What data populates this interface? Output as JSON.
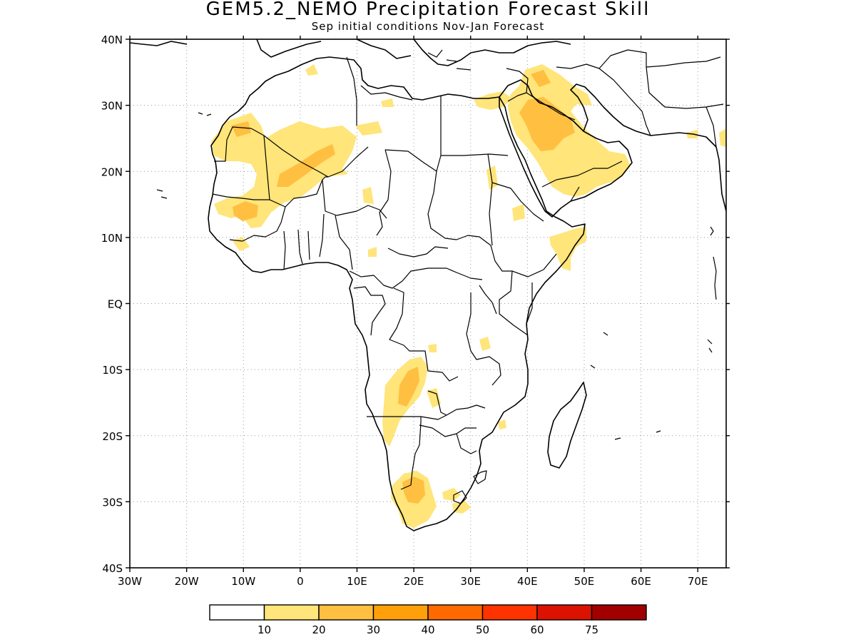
{
  "title": "GEM5.2_NEMO Precipitation Forecast Skill",
  "subtitle": "Sep initial conditions  Nov-Jan Forecast",
  "map": {
    "lon_range": [
      -30,
      75
    ],
    "lat_range": [
      -40,
      40
    ],
    "gridlines": true,
    "x_tick_labels": [
      "30W",
      "20W",
      "10W",
      "0",
      "10E",
      "20E",
      "30E",
      "40E",
      "50E",
      "60E",
      "70E"
    ],
    "y_tick_labels": [
      "40N",
      "30N",
      "20N",
      "10N",
      "EQ",
      "10S",
      "20S",
      "30S",
      "40S"
    ],
    "region": "Africa and Arabian Peninsula"
  },
  "colorbar": {
    "levels": [
      "10",
      "20",
      "30",
      "40",
      "50",
      "60",
      "75"
    ],
    "colors": [
      "#ffffff",
      "#ffe57a",
      "#ffbf40",
      "#ffa00a",
      "#ff6a00",
      "#ff3300",
      "#dc1200",
      "#a00000"
    ]
  },
  "skill_regions": [
    {
      "name": "western-sahara-mauritania",
      "level": "10-20"
    },
    {
      "name": "mauritania-core",
      "level": "20-30"
    },
    {
      "name": "mali-niger-band",
      "level": "10-20"
    },
    {
      "name": "mali-niger-core",
      "level": "20-30"
    },
    {
      "name": "guinea-highlands",
      "level": "20-30"
    },
    {
      "name": "arabian-peninsula",
      "level": "10-20"
    },
    {
      "name": "arabian-peninsula-core",
      "level": "20-30"
    },
    {
      "name": "horn-of-africa",
      "level": "10-20"
    },
    {
      "name": "angola-zambia",
      "level": "10-20"
    },
    {
      "name": "angola-zambia-core",
      "level": "20-30"
    },
    {
      "name": "south-africa-west",
      "level": "10-20"
    },
    {
      "name": "south-africa-core",
      "level": "20-30"
    }
  ]
}
